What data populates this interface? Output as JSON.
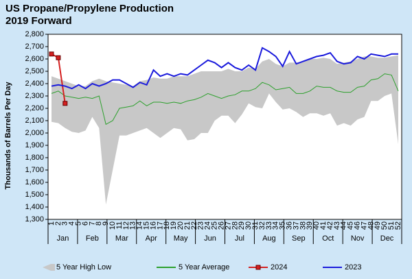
{
  "chart_data": {
    "type": "line",
    "title": "US Propane/Propylene Production",
    "subtitle": "2019 Forward",
    "y_label": "Thousands of Barrels Per Day",
    "categories": [
      "1",
      "2",
      "3",
      "4",
      "5",
      "6",
      "7",
      "8",
      "9",
      "10",
      "11",
      "12",
      "13",
      "14",
      "15",
      "16",
      "17",
      "18",
      "19",
      "20",
      "21",
      "22",
      "23",
      "24",
      "25",
      "26",
      "27",
      "28",
      "29",
      "30",
      "31",
      "32",
      "33",
      "34",
      "35",
      "36",
      "37",
      "38",
      "39",
      "40",
      "41",
      "42",
      "43",
      "44",
      "45",
      "46",
      "47",
      "48",
      "49",
      "50",
      "51",
      "52"
    ],
    "months": [
      "Jan",
      "Feb",
      "Mar",
      "Apr",
      "May",
      "Jun",
      "Jul",
      "Aug",
      "Sep",
      "Oct",
      "Nov",
      "Dec"
    ],
    "ylim": [
      1300,
      2800
    ],
    "yticks": [
      {
        "value": 1300,
        "label": "1,300"
      },
      {
        "value": 1400,
        "label": "1,400"
      },
      {
        "value": 1500,
        "label": "1,500"
      },
      {
        "value": 1600,
        "label": "1,600"
      },
      {
        "value": 1700,
        "label": "1,700"
      },
      {
        "value": 1800,
        "label": "1,800"
      },
      {
        "value": 1900,
        "label": "1,900"
      },
      {
        "value": 2000,
        "label": "2,000"
      },
      {
        "value": 2100,
        "label": "2,100"
      },
      {
        "value": 2200,
        "label": "2,200"
      },
      {
        "value": 2300,
        "label": "2,300"
      },
      {
        "value": 2400,
        "label": "2,400"
      },
      {
        "value": 2500,
        "label": "2,500"
      },
      {
        "value": 2600,
        "label": "2,600"
      },
      {
        "value": 2700,
        "label": "2,700"
      },
      {
        "value": 2800,
        "label": "2,800"
      }
    ],
    "band": {
      "name": "5 Year High Low",
      "color": "#c8c8c8",
      "low": [
        2090,
        2080,
        2040,
        2010,
        2000,
        2020,
        2130,
        2040,
        1420,
        1700,
        1980,
        1980,
        2000,
        2020,
        2040,
        2000,
        1960,
        2000,
        2040,
        2030,
        1940,
        1950,
        2000,
        2000,
        2100,
        2140,
        2140,
        2080,
        2150,
        2240,
        2210,
        2200,
        2320,
        2250,
        2190,
        2200,
        2170,
        2130,
        2160,
        2160,
        2140,
        2160,
        2060,
        2080,
        2060,
        2110,
        2130,
        2260,
        2260,
        2300,
        2320,
        1910
      ],
      "high": [
        2460,
        2440,
        2420,
        2400,
        2380,
        2380,
        2420,
        2440,
        2420,
        2410,
        2400,
        2390,
        2380,
        2420,
        2430,
        2450,
        2440,
        2440,
        2460,
        2460,
        2460,
        2480,
        2500,
        2500,
        2500,
        2500,
        2520,
        2500,
        2500,
        2530,
        2520,
        2580,
        2600,
        2560,
        2540,
        2570,
        2570,
        2580,
        2600,
        2600,
        2610,
        2600,
        2560,
        2570,
        2580,
        2600,
        2620,
        2620,
        2610,
        2610,
        2620,
        2630
      ]
    },
    "series": [
      {
        "name": "5 Year Average",
        "color": "#2ca02c",
        "marker": false,
        "values": [
          2320,
          2340,
          2300,
          2290,
          2280,
          2290,
          2280,
          2300,
          2070,
          2100,
          2200,
          2210,
          2220,
          2260,
          2220,
          2250,
          2250,
          2240,
          2250,
          2240,
          2260,
          2270,
          2290,
          2320,
          2300,
          2280,
          2300,
          2310,
          2340,
          2340,
          2360,
          2410,
          2390,
          2350,
          2360,
          2370,
          2320,
          2320,
          2340,
          2380,
          2370,
          2370,
          2340,
          2330,
          2330,
          2370,
          2380,
          2430,
          2440,
          2480,
          2470,
          2340
        ]
      },
      {
        "name": "2024",
        "color": "#d42020",
        "marker": true,
        "values": [
          2640,
          2610,
          2240,
          null,
          null,
          null,
          null,
          null,
          null,
          null,
          null,
          null,
          null,
          null,
          null,
          null,
          null,
          null,
          null,
          null,
          null,
          null,
          null,
          null,
          null,
          null,
          null,
          null,
          null,
          null,
          null,
          null,
          null,
          null,
          null,
          null,
          null,
          null,
          null,
          null,
          null,
          null,
          null,
          null,
          null,
          null,
          null,
          null,
          null,
          null,
          null,
          null
        ]
      },
      {
        "name": "2023",
        "color": "#1a1adc",
        "marker": false,
        "values": [
          2380,
          2390,
          2380,
          2360,
          2390,
          2360,
          2400,
          2380,
          2400,
          2430,
          2430,
          2400,
          2370,
          2410,
          2390,
          2510,
          2460,
          2480,
          2460,
          2480,
          2470,
          2510,
          2550,
          2590,
          2570,
          2530,
          2570,
          2530,
          2510,
          2550,
          2510,
          2690,
          2660,
          2620,
          2540,
          2660,
          2560,
          2580,
          2600,
          2620,
          2630,
          2650,
          2580,
          2560,
          2570,
          2620,
          2600,
          2640,
          2630,
          2620,
          2640,
          2640
        ]
      }
    ]
  }
}
